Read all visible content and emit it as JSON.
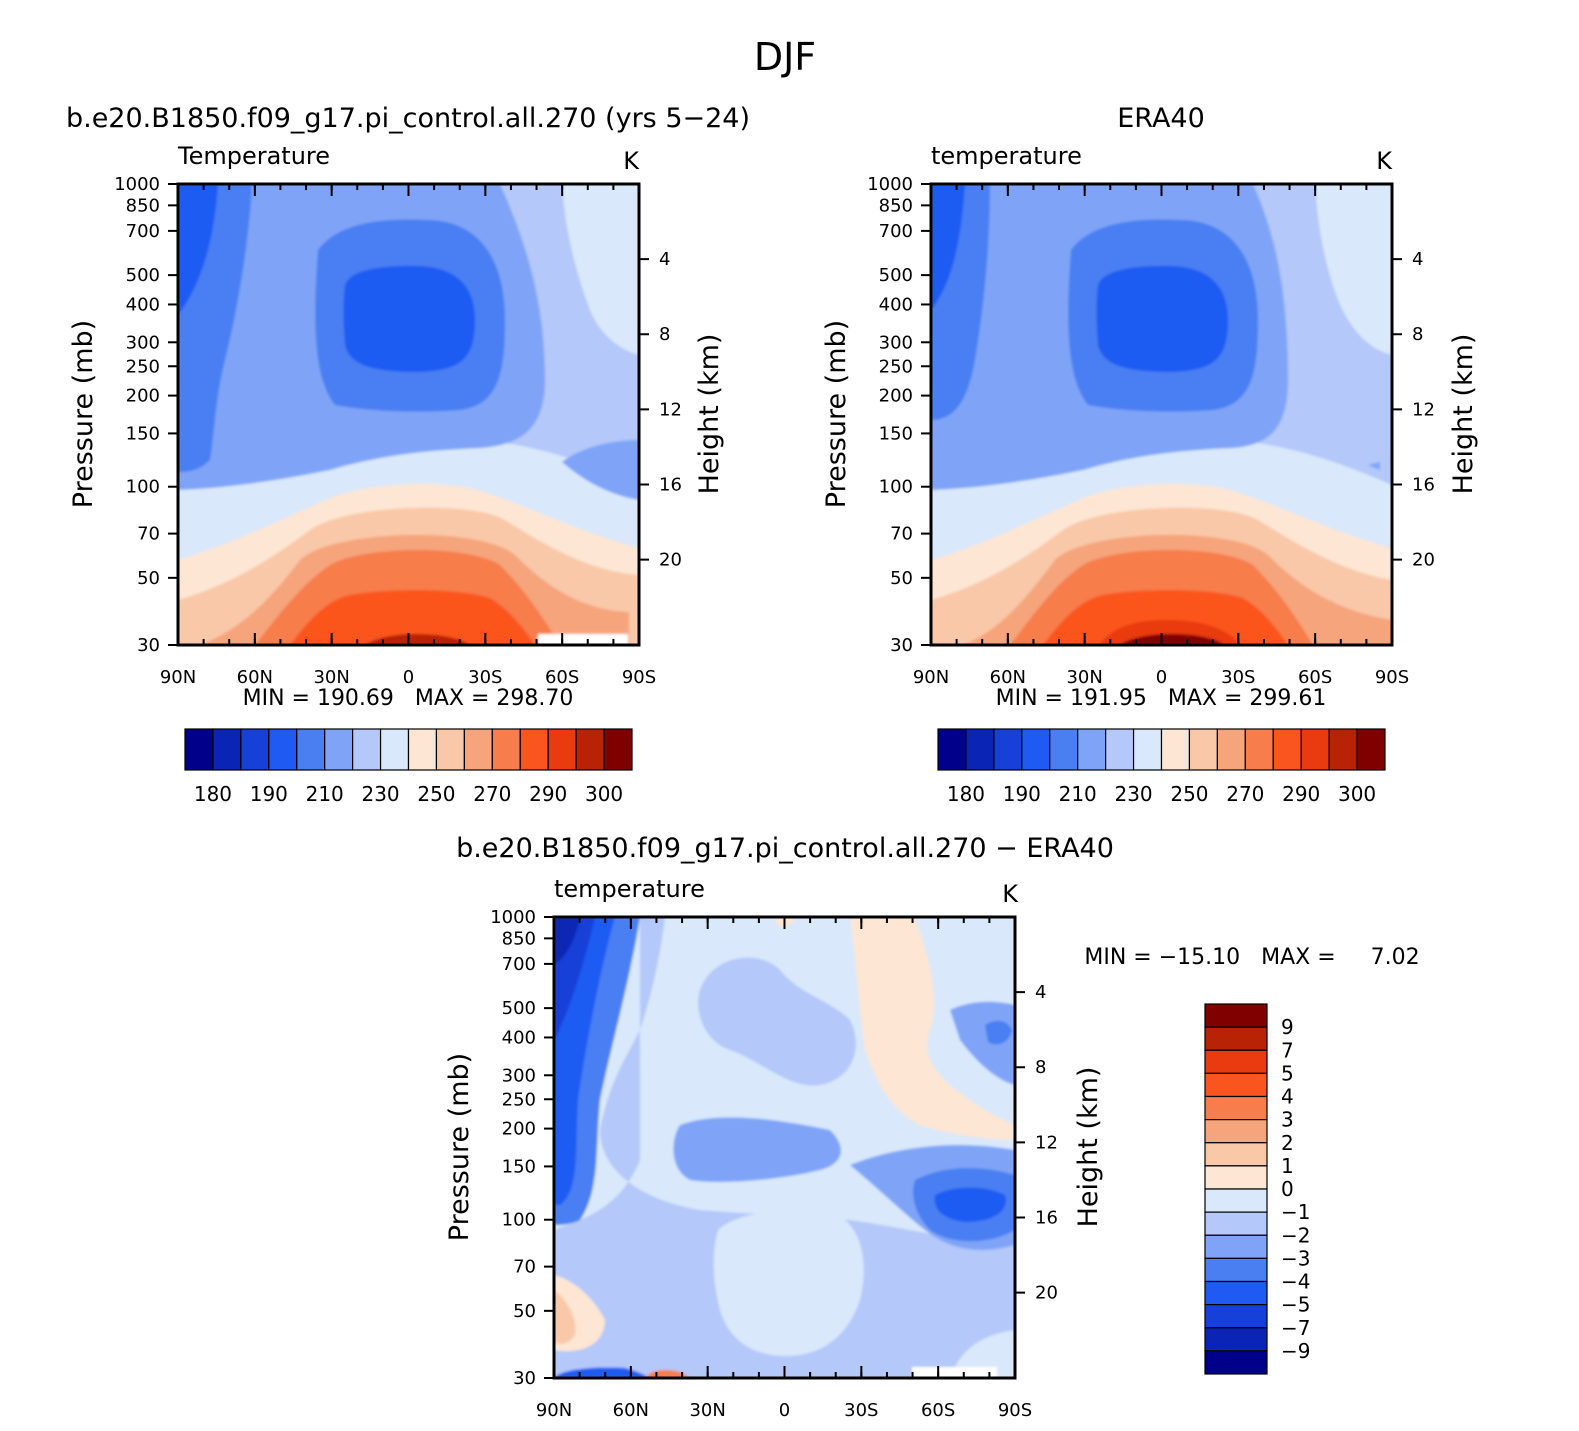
{
  "page_title": "DJF",
  "colors": {
    "abs_palette": [
      "#00008b",
      "#0a25b5",
      "#1740d8",
      "#1f5bf2",
      "#4a7ff2",
      "#7fa4f7",
      "#b4c8f9",
      "#d9e8fb",
      "#fde6d3",
      "#f9c8a8",
      "#f6a47b",
      "#f77d4c",
      "#fb551f",
      "#e93a10",
      "#b82306",
      "#800000"
    ],
    "diff_palette": [
      "#00008b",
      "#0a25b5",
      "#1740d8",
      "#1f5bf2",
      "#4a7ff2",
      "#7fa4f7",
      "#b4c8f9",
      "#d9e8fb",
      "#fde6d3",
      "#f9c8a8",
      "#f6a47b",
      "#f77d4c",
      "#fb551f",
      "#e93a10",
      "#b82306",
      "#800000"
    ]
  },
  "panels": [
    {
      "id": "model",
      "case_title": "b.e20.B1850.f09_g17.pi_control.all.270 (yrs 5−24)",
      "var_label": "Temperature",
      "units": "K",
      "stats": "MIN = 190.69   MAX = 298.70"
    },
    {
      "id": "obs",
      "case_title": "ERA40",
      "var_label": "temperature",
      "units": "K",
      "stats": "MIN = 191.95   MAX = 299.61"
    },
    {
      "id": "diff",
      "case_title": "b.e20.B1850.f09_g17.pi_control.all.270 − ERA40",
      "var_label": "temperature",
      "units": "K",
      "stats": "MIN = −15.10   MAX =     7.02"
    }
  ],
  "chart_data": [
    {
      "type": "heatmap",
      "title": "b.e20.B1850.f09_g17.pi_control.all.270 (yrs 5−24)",
      "subtitle": "Temperature",
      "units": "K",
      "xlabel": "",
      "ylabel": "Pressure (mb)",
      "y2label": "Height (km)",
      "x_ticks": [
        "90N",
        "60N",
        "30N",
        "0",
        "30S",
        "60S",
        "90S"
      ],
      "x_values": [
        90,
        60,
        30,
        0,
        -30,
        -60,
        -90
      ],
      "y_ticks": [
        30,
        50,
        70,
        100,
        150,
        200,
        250,
        300,
        400,
        500,
        700,
        850,
        1000
      ],
      "y2_ticks": [
        20,
        16,
        12,
        8,
        4
      ],
      "y_scale": "log",
      "ylim": [
        1000,
        30
      ],
      "min": 190.69,
      "max": 298.7,
      "colorbar_labels": [
        "180",
        "190",
        "210",
        "230",
        "250",
        "270",
        "290",
        "300"
      ]
    },
    {
      "type": "heatmap",
      "title": "ERA40",
      "subtitle": "temperature",
      "units": "K",
      "xlabel": "",
      "ylabel": "Pressure (mb)",
      "y2label": "Height (km)",
      "x_ticks": [
        "90N",
        "60N",
        "30N",
        "0",
        "30S",
        "60S",
        "90S"
      ],
      "x_values": [
        90,
        60,
        30,
        0,
        -30,
        -60,
        -90
      ],
      "y_ticks": [
        30,
        50,
        70,
        100,
        150,
        200,
        250,
        300,
        400,
        500,
        700,
        850,
        1000
      ],
      "y2_ticks": [
        20,
        16,
        12,
        8,
        4
      ],
      "y_scale": "log",
      "ylim": [
        1000,
        30
      ],
      "min": 191.95,
      "max": 299.61,
      "colorbar_labels": [
        "180",
        "190",
        "210",
        "230",
        "250",
        "270",
        "290",
        "300"
      ]
    },
    {
      "type": "heatmap",
      "title": "b.e20.B1850.f09_g17.pi_control.all.270 − ERA40",
      "subtitle": "temperature",
      "units": "K",
      "xlabel": "",
      "ylabel": "Pressure (mb)",
      "y2label": "Height (km)",
      "x_ticks": [
        "90N",
        "60N",
        "30N",
        "0",
        "30S",
        "60S",
        "90S"
      ],
      "x_values": [
        90,
        60,
        30,
        0,
        -30,
        -60,
        -90
      ],
      "y_ticks": [
        30,
        50,
        70,
        100,
        150,
        200,
        250,
        300,
        400,
        500,
        700,
        850,
        1000
      ],
      "y2_ticks": [
        20,
        16,
        12,
        8,
        4
      ],
      "y_scale": "log",
      "ylim": [
        1000,
        30
      ],
      "min": -15.1,
      "max": 7.02,
      "colorbar_labels": [
        "9",
        "7",
        "5",
        "4",
        "3",
        "2",
        "1",
        "0",
        "−1",
        "−2",
        "−3",
        "−4",
        "−5",
        "−7",
        "−9"
      ]
    }
  ]
}
